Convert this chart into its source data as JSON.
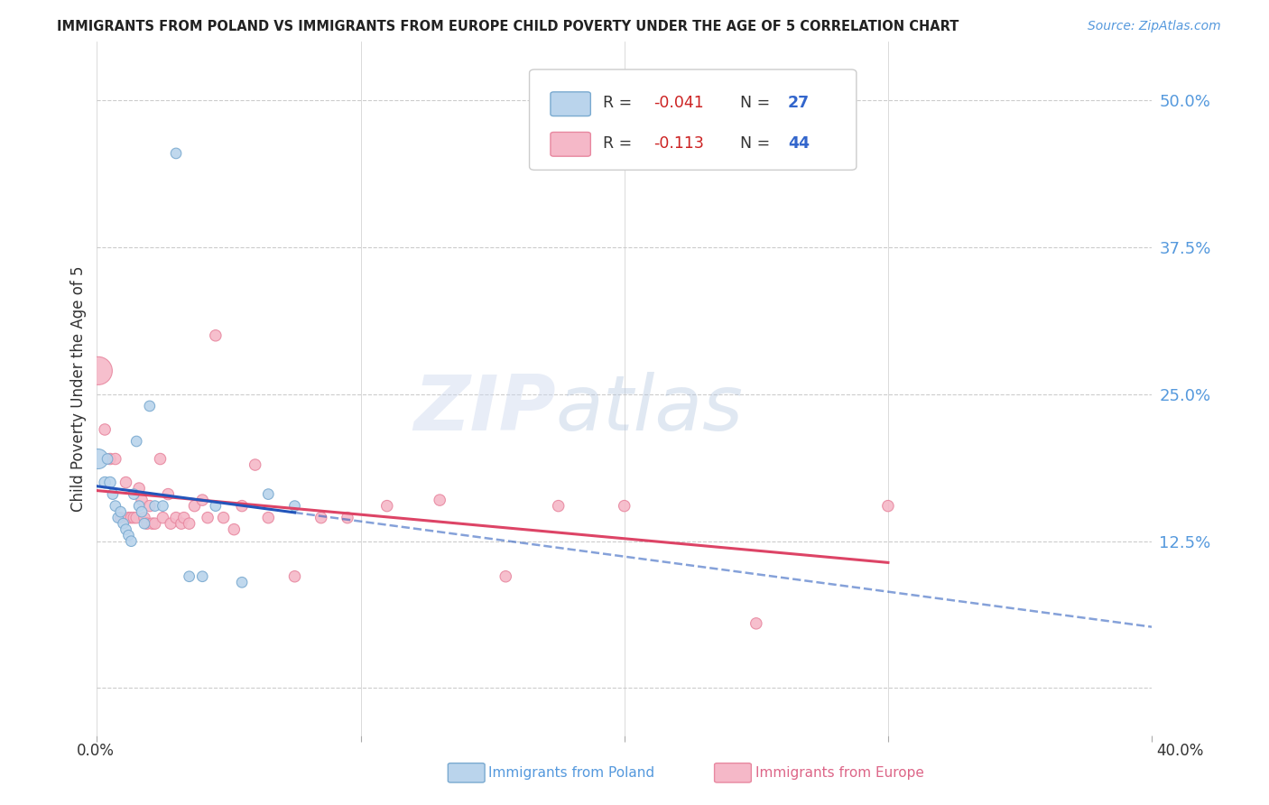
{
  "title": "IMMIGRANTS FROM POLAND VS IMMIGRANTS FROM EUROPE CHILD POVERTY UNDER THE AGE OF 5 CORRELATION CHART",
  "source": "Source: ZipAtlas.com",
  "ylabel": "Child Poverty Under the Age of 5",
  "xlim": [
    0.0,
    0.4
  ],
  "ylim": [
    -0.04,
    0.55
  ],
  "yticks": [
    0.0,
    0.125,
    0.25,
    0.375,
    0.5
  ],
  "ytick_labels": [
    "",
    "12.5%",
    "25.0%",
    "37.5%",
    "50.0%"
  ],
  "poland_color": "#bad4ec",
  "europe_color": "#f5b8c8",
  "poland_edge": "#7aaad0",
  "europe_edge": "#e888a0",
  "trendline_poland_color": "#2255bb",
  "trendline_europe_color": "#dd4466",
  "background_color": "#ffffff",
  "grid_color": "#cccccc",
  "poland_x": [
    0.0005,
    0.003,
    0.004,
    0.005,
    0.006,
    0.007,
    0.008,
    0.009,
    0.01,
    0.011,
    0.012,
    0.013,
    0.014,
    0.015,
    0.016,
    0.017,
    0.018,
    0.02,
    0.022,
    0.025,
    0.03,
    0.035,
    0.04,
    0.045,
    0.055,
    0.065,
    0.075
  ],
  "poland_y": [
    0.195,
    0.175,
    0.195,
    0.175,
    0.165,
    0.155,
    0.145,
    0.15,
    0.14,
    0.135,
    0.13,
    0.125,
    0.165,
    0.21,
    0.155,
    0.15,
    0.14,
    0.24,
    0.155,
    0.155,
    0.455,
    0.095,
    0.095,
    0.155,
    0.09,
    0.165,
    0.155
  ],
  "poland_size": [
    250,
    80,
    70,
    80,
    70,
    70,
    70,
    70,
    70,
    70,
    70,
    70,
    70,
    70,
    70,
    70,
    70,
    70,
    70,
    70,
    70,
    70,
    70,
    70,
    70,
    70,
    70
  ],
  "europe_x": [
    0.0005,
    0.003,
    0.005,
    0.007,
    0.009,
    0.011,
    0.012,
    0.013,
    0.014,
    0.015,
    0.016,
    0.017,
    0.018,
    0.019,
    0.02,
    0.021,
    0.022,
    0.024,
    0.025,
    0.027,
    0.028,
    0.03,
    0.032,
    0.033,
    0.035,
    0.037,
    0.04,
    0.042,
    0.045,
    0.048,
    0.052,
    0.055,
    0.06,
    0.065,
    0.075,
    0.085,
    0.095,
    0.11,
    0.13,
    0.155,
    0.175,
    0.2,
    0.25,
    0.3
  ],
  "europe_y": [
    0.27,
    0.22,
    0.195,
    0.195,
    0.145,
    0.175,
    0.145,
    0.145,
    0.145,
    0.145,
    0.17,
    0.16,
    0.145,
    0.14,
    0.155,
    0.14,
    0.14,
    0.195,
    0.145,
    0.165,
    0.14,
    0.145,
    0.14,
    0.145,
    0.14,
    0.155,
    0.16,
    0.145,
    0.3,
    0.145,
    0.135,
    0.155,
    0.19,
    0.145,
    0.095,
    0.145,
    0.145,
    0.155,
    0.16,
    0.095,
    0.155,
    0.155,
    0.055,
    0.155
  ],
  "europe_size": [
    500,
    80,
    80,
    80,
    80,
    80,
    80,
    80,
    80,
    80,
    80,
    80,
    80,
    80,
    80,
    80,
    80,
    80,
    80,
    80,
    80,
    80,
    80,
    80,
    80,
    80,
    80,
    80,
    80,
    80,
    80,
    80,
    80,
    80,
    80,
    80,
    80,
    80,
    80,
    80,
    80,
    80,
    80,
    80
  ]
}
